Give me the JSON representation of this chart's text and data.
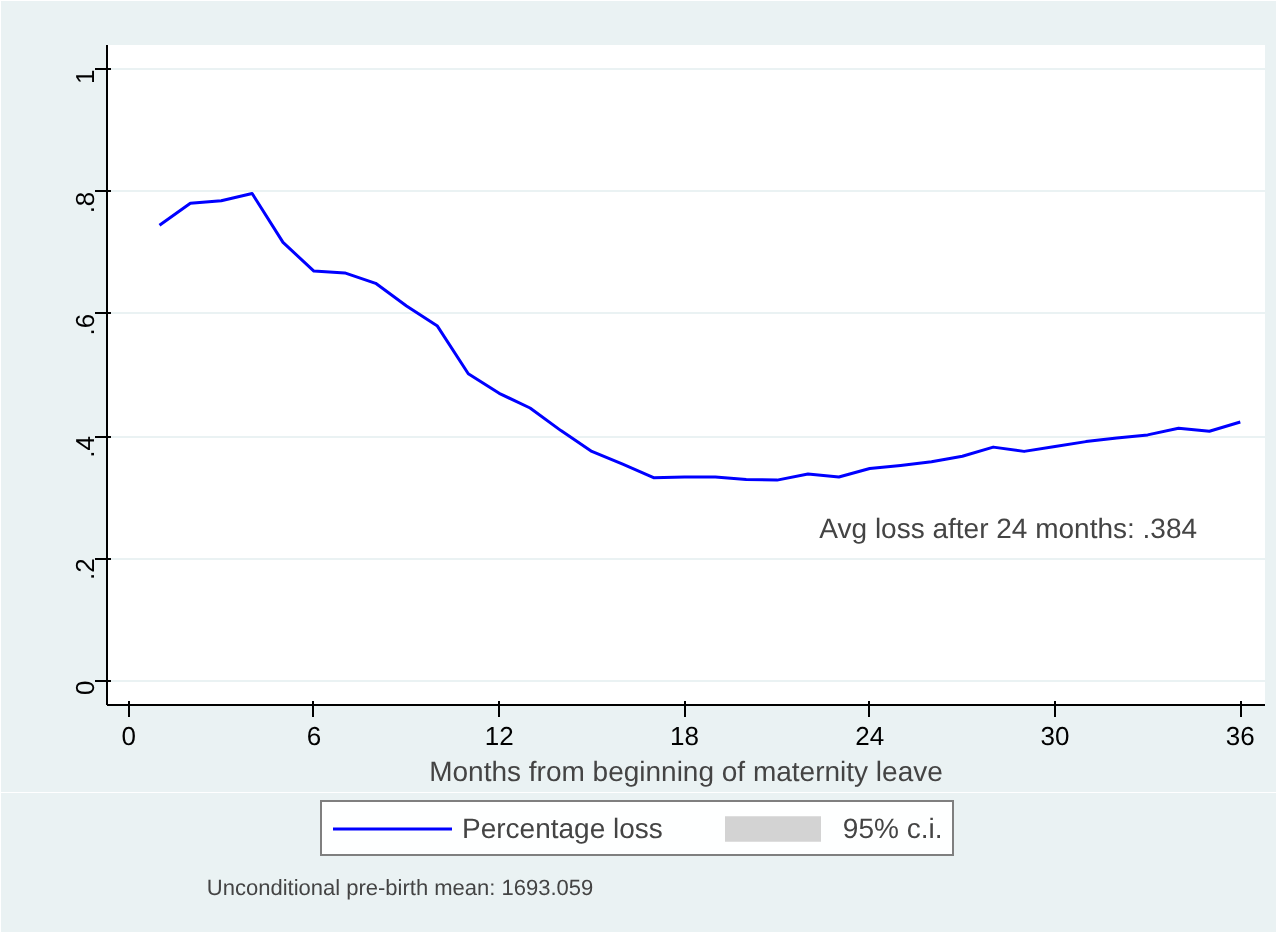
{
  "chart_data": {
    "type": "line",
    "xlabel": "Months from beginning of maternity leave",
    "x": [
      1,
      2,
      3,
      4,
      5,
      6,
      7,
      8,
      9,
      10,
      11,
      12,
      13,
      14,
      15,
      16,
      17,
      18,
      19,
      20,
      21,
      22,
      23,
      24,
      25,
      26,
      27,
      28,
      29,
      30,
      31,
      32,
      33,
      34,
      35,
      36
    ],
    "series": [
      {
        "name": "Percentage loss",
        "color": "#0000ff",
        "values": [
          0.745,
          0.781,
          0.785,
          0.797,
          0.717,
          0.67,
          0.667,
          0.65,
          0.613,
          0.58,
          0.502,
          0.47,
          0.446,
          0.409,
          0.375,
          0.354,
          0.332,
          0.333,
          0.333,
          0.329,
          0.328,
          0.338,
          0.333,
          0.347,
          0.352,
          0.358,
          0.367,
          0.382,
          0.375,
          0.383,
          0.391,
          0.397,
          0.402,
          0.413,
          0.408,
          0.423
        ]
      },
      {
        "name": "95% c.i.",
        "type": "area",
        "color": "#d3d3d3",
        "values": [
          null,
          null,
          null,
          null,
          null,
          null,
          null,
          null,
          null,
          null,
          null,
          null,
          null,
          null,
          null,
          null,
          null,
          null,
          null,
          null,
          null,
          null,
          null,
          null,
          null,
          null,
          null,
          null,
          null,
          null,
          null,
          null,
          null,
          null,
          null,
          null
        ]
      }
    ],
    "xlim": [
      -0.7,
      36.8
    ],
    "xticks": [
      0,
      6,
      12,
      18,
      24,
      30,
      36
    ],
    "ylim": [
      -0.04,
      1.04
    ],
    "yticks": [
      0,
      {
        "value": 0.2,
        "label": ".2"
      },
      {
        "value": 0.4,
        "label": ".4"
      },
      {
        "value": 0.6,
        "label": ".6"
      },
      {
        "value": 0.8,
        "label": ".8"
      },
      1
    ],
    "grid": "y",
    "legend": "bottom",
    "line_style": "solid",
    "marker": "none",
    "annotations": [
      "Avg loss after 24 months: .384",
      "Unconditional pre-birth mean: 1693.059"
    ]
  }
}
